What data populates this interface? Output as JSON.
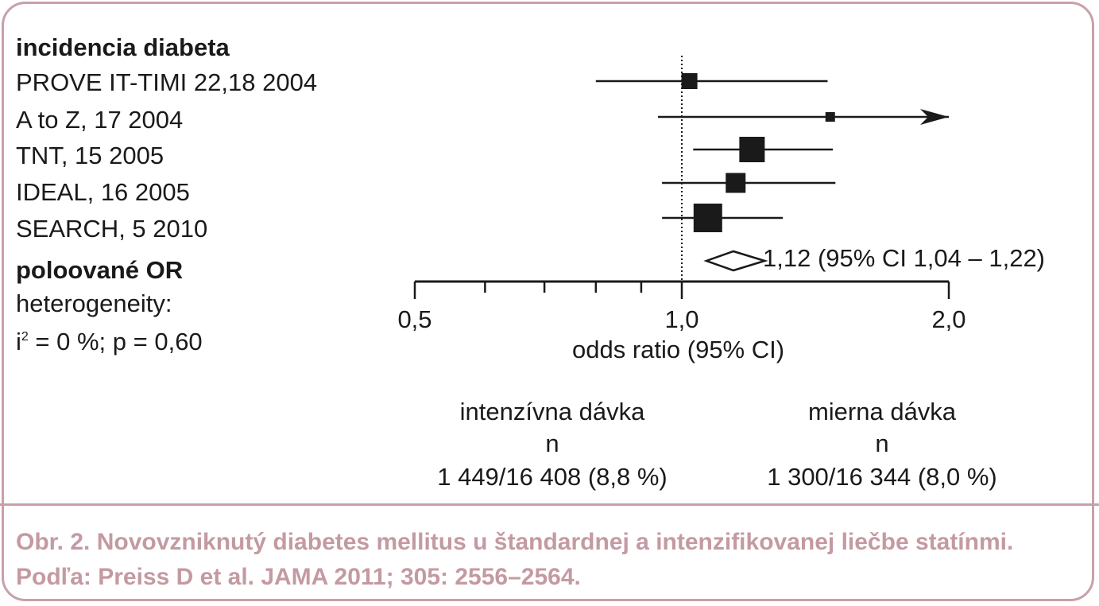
{
  "header": {
    "section_label": "incidencia diabeta"
  },
  "pooled": {
    "label": "poloované OR",
    "heterogeneity_label": "heterogeneity:",
    "heterogeneity_i_prefix": "i",
    "heterogeneity_i_sup": "2",
    "heterogeneity_stats": " = 0 %; p = 0,60",
    "annotation": "1,12 (95% CI 1,04 – 1,22)"
  },
  "chart_data": {
    "type": "forest",
    "xlabel": "odds ratio (95% CI)",
    "x_scale": "log",
    "xlim": [
      0.5,
      2.0
    ],
    "ticks": [
      {
        "value": 0.5,
        "label": "0,5"
      },
      {
        "value": 0.6,
        "label": ""
      },
      {
        "value": 0.7,
        "label": ""
      },
      {
        "value": 0.8,
        "label": ""
      },
      {
        "value": 0.9,
        "label": ""
      },
      {
        "value": 1.0,
        "label": "1,0"
      },
      {
        "value": 2.0,
        "label": "2,0"
      }
    ],
    "reference_line": 1.0,
    "studies": [
      {
        "label": "PROVE IT-TIMI 22,18 2004",
        "or": 1.02,
        "lower": 0.8,
        "upper": 1.46,
        "weight": 1.0
      },
      {
        "label": "A to Z, 17 2004",
        "or": 1.47,
        "lower": 0.94,
        "upper": 2.3,
        "weight": 0.6,
        "arrow": true
      },
      {
        "label": "TNT, 15 2005",
        "or": 1.2,
        "lower": 1.03,
        "upper": 1.48,
        "weight": 1.6
      },
      {
        "label": "IDEAL, 16 2005",
        "or": 1.15,
        "lower": 0.95,
        "upper": 1.49,
        "weight": 1.25
      },
      {
        "label": "SEARCH, 5 2010",
        "or": 1.07,
        "lower": 0.95,
        "upper": 1.3,
        "weight": 1.8
      }
    ],
    "pooled": {
      "or": 1.12,
      "lower": 1.04,
      "upper": 1.22
    }
  },
  "groups": {
    "left": {
      "name": "intenzívna dávka",
      "n_label": "n",
      "count": "1 449/16 408 (8,8 %)"
    },
    "right": {
      "name": "mierna dávka",
      "n_label": "n",
      "count": "1 300/16 344 (8,0 %)"
    }
  },
  "caption": "Obr. 2. Novovzniknutý diabetes mellitus u štandardnej a intenzifikovanej liečbe statínmi. Podľa: Preiss D et al. JAMA 2011; 305: 2556–2564."
}
